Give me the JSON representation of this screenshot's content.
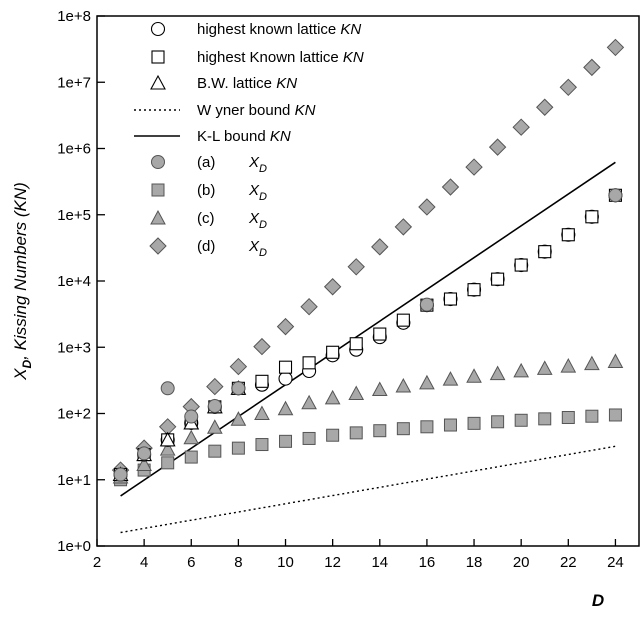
{
  "chart_data": {
    "type": "scatter",
    "title": "",
    "xlabel": "D",
    "ylabel": "X_D , Kissing Numbers (KN)",
    "ylabel_parts": {
      "x": "X",
      "sub": "D",
      "rest": ", Kissing Numbers  (KN)"
    },
    "xlim": [
      2,
      25
    ],
    "ylim": [
      1,
      100000000
    ],
    "y_scale": "log",
    "grid": false,
    "legend_position": "top-left",
    "x_ticks": [
      "2",
      "4",
      "6",
      "8",
      "10",
      "12",
      "14",
      "16",
      "18",
      "20",
      "22",
      "24"
    ],
    "y_ticks": [
      "1e+0",
      "1e+1",
      "1e+2",
      "1e+3",
      "1e+4",
      "1e+5",
      "1e+6",
      "1e+7",
      "1e+8"
    ],
    "series": [
      {
        "name": "highest  known lattice KN",
        "label_main": "highest  known lattice ",
        "label_italic": "KN",
        "marker": "circle-open",
        "x": [
          3,
          4,
          5,
          6,
          7,
          8,
          9,
          10,
          11,
          12,
          13,
          14,
          15,
          16,
          17,
          18,
          19,
          20,
          21,
          22,
          23,
          24
        ],
        "y": [
          12,
          24,
          40,
          72,
          126,
          240,
          272,
          336,
          438,
          756,
          918,
          1422,
          2340,
          4320,
          5346,
          7398,
          10668,
          17400,
          27720,
          49896,
          93150,
          196560
        ]
      },
      {
        "name": "highest Known lattice KN",
        "label_main": "highest Known lattice ",
        "label_italic": "KN",
        "marker": "square-open",
        "x": [
          3,
          4,
          5,
          6,
          7,
          8,
          9,
          10,
          11,
          12,
          13,
          14,
          15,
          16,
          17,
          18,
          19,
          20,
          21,
          22,
          23,
          24
        ],
        "y": [
          12,
          24,
          40,
          72,
          126,
          240,
          306,
          500,
          582,
          840,
          1130,
          1582,
          2564,
          4320,
          5346,
          7398,
          10668,
          17400,
          27720,
          49896,
          93150,
          196560
        ]
      },
      {
        "name": "B.W. lattice KN",
        "label_main": "B.W. lattice  ",
        "label_italic": "KN",
        "marker": "triangle-open",
        "x": [
          3,
          4,
          5,
          6,
          7,
          8
        ],
        "y": [
          12,
          24,
          40,
          72,
          126,
          240
        ]
      },
      {
        "name": "Wyner bound KN",
        "label_main": "W yner bound ",
        "label_italic": "KN",
        "marker": "dotted-line",
        "x": [
          3,
          24
        ],
        "y": [
          1.6,
          32
        ]
      },
      {
        "name": "K-L bound KN",
        "label_main": "K-L bound  ",
        "label_italic": "KN",
        "marker": "solid-line",
        "x": [
          3,
          24
        ],
        "y": [
          5.7,
          620000
        ]
      },
      {
        "name": "(a) X_D",
        "label_main": "(a)",
        "label_italic": "X",
        "label_sub": "D",
        "marker": "circle-filled",
        "x": [
          3,
          4,
          5,
          6,
          7,
          8,
          16,
          24
        ],
        "y": [
          12,
          25,
          240,
          90,
          130,
          240,
          4400,
          196560
        ]
      },
      {
        "name": "(b) X_D",
        "label_main": "(b)",
        "label_italic": "X",
        "label_sub": "D",
        "marker": "square-filled",
        "x": [
          3,
          4,
          5,
          6,
          7,
          8,
          9,
          10,
          11,
          12,
          13,
          14,
          15,
          16,
          17,
          18,
          19,
          20,
          21,
          22,
          23,
          24
        ],
        "y": [
          10,
          14,
          18,
          22,
          27,
          30,
          34,
          38,
          42,
          47,
          51,
          55,
          59,
          63,
          67,
          71,
          75,
          79,
          83,
          87,
          91,
          95
        ]
      },
      {
        "name": "(c) X_D",
        "label_main": "(c)",
        "label_italic": "X",
        "label_sub": "D",
        "marker": "triangle-filled",
        "x": [
          3,
          4,
          5,
          6,
          7,
          8,
          9,
          10,
          11,
          12,
          13,
          14,
          15,
          16,
          17,
          18,
          19,
          20,
          21,
          22,
          23,
          24
        ],
        "y": [
          11,
          17,
          29,
          43,
          62,
          82,
          100,
          118,
          145,
          172,
          200,
          230,
          260,
          290,
          330,
          365,
          400,
          440,
          480,
          520,
          565,
          610
        ]
      },
      {
        "name": "(d) X_D",
        "label_main": "(d)",
        "label_italic": "X",
        "label_sub": "D",
        "marker": "diamond-filled",
        "x": [
          3,
          4,
          5,
          6,
          7,
          8,
          9,
          10,
          11,
          12,
          13,
          14,
          15,
          16,
          17,
          18,
          19,
          20,
          21,
          22,
          23,
          24
        ],
        "y": [
          14,
          30,
          63,
          127,
          255,
          511,
          1023,
          2047,
          4095,
          8191,
          16383,
          32767,
          65535,
          131071,
          262143,
          524287,
          1048575,
          2097151,
          4194303,
          8388607,
          16777215,
          33554431
        ]
      }
    ]
  }
}
